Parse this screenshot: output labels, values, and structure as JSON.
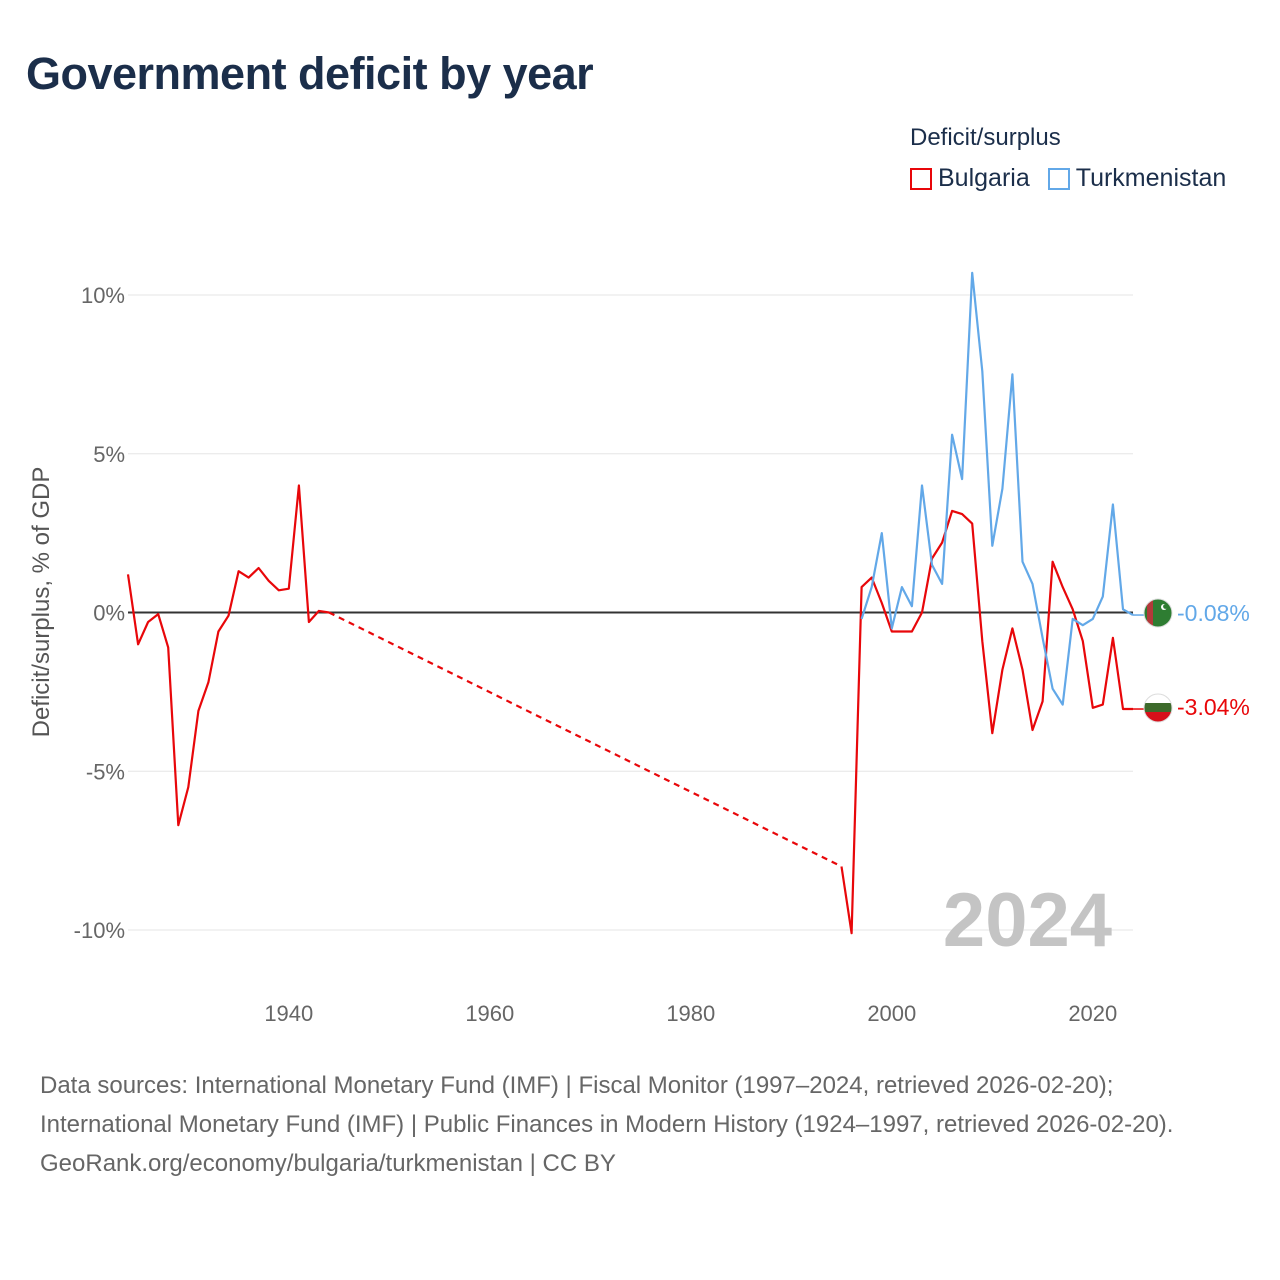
{
  "title": "Government deficit by year",
  "legend_title": "Deficit/surplus",
  "chart_data": {
    "type": "line",
    "title": "Government deficit by year",
    "ylabel": "Deficit/surplus, % of GDP",
    "xlabel": "",
    "xlim": [
      1924,
      2024
    ],
    "ylim": [
      -11,
      11
    ],
    "y_ticks": [
      10,
      5,
      0,
      -5,
      -10
    ],
    "y_tick_labels": [
      "10%",
      "5%",
      "0%",
      "-5%",
      "-10%"
    ],
    "x_ticks": [
      1940,
      1960,
      1980,
      2000,
      2020
    ],
    "x_tick_labels": [
      "1940",
      "1960",
      "1980",
      "2000",
      "2020"
    ],
    "year_label": "2024",
    "series": [
      {
        "name": "Bulgaria",
        "color": "#e8070a",
        "end_label": "-3.04%",
        "gap_dashed": [
          1944,
          1995
        ],
        "points": [
          [
            1924,
            1.2
          ],
          [
            1925,
            -1.0
          ],
          [
            1926,
            -0.3
          ],
          [
            1927,
            -0.05
          ],
          [
            1928,
            -1.1
          ],
          [
            1929,
            -6.7
          ],
          [
            1930,
            -5.5
          ],
          [
            1931,
            -3.1
          ],
          [
            1932,
            -2.2
          ],
          [
            1933,
            -0.6
          ],
          [
            1934,
            -0.1
          ],
          [
            1935,
            1.3
          ],
          [
            1936,
            1.1
          ],
          [
            1937,
            1.4
          ],
          [
            1938,
            1.0
          ],
          [
            1939,
            0.7
          ],
          [
            1940,
            0.75
          ],
          [
            1941,
            4.0
          ],
          [
            1942,
            -0.3
          ],
          [
            1943,
            0.05
          ],
          [
            1944,
            0.0
          ],
          [
            1995,
            -8.0
          ],
          [
            1996,
            -10.1
          ],
          [
            1997,
            0.8
          ],
          [
            1998,
            1.1
          ],
          [
            1999,
            0.3
          ],
          [
            2000,
            -0.6
          ],
          [
            2001,
            -0.6
          ],
          [
            2002,
            -0.6
          ],
          [
            2003,
            0.0
          ],
          [
            2004,
            1.7
          ],
          [
            2005,
            2.2
          ],
          [
            2006,
            3.2
          ],
          [
            2007,
            3.1
          ],
          [
            2008,
            2.8
          ],
          [
            2009,
            -0.9
          ],
          [
            2010,
            -3.8
          ],
          [
            2011,
            -1.8
          ],
          [
            2012,
            -0.5
          ],
          [
            2013,
            -1.8
          ],
          [
            2014,
            -3.7
          ],
          [
            2015,
            -2.8
          ],
          [
            2016,
            1.6
          ],
          [
            2017,
            0.8
          ],
          [
            2018,
            0.1
          ],
          [
            2019,
            -0.9
          ],
          [
            2020,
            -3.0
          ],
          [
            2021,
            -2.9
          ],
          [
            2022,
            -0.8
          ],
          [
            2023,
            -3.04
          ],
          [
            2024,
            -3.04
          ]
        ]
      },
      {
        "name": "Turkmenistan",
        "color": "#62a8e8",
        "end_label": "-0.08%",
        "points": [
          [
            1997,
            -0.2
          ],
          [
            1998,
            0.8
          ],
          [
            1999,
            2.5
          ],
          [
            2000,
            -0.5
          ],
          [
            2001,
            0.8
          ],
          [
            2002,
            0.2
          ],
          [
            2003,
            4.0
          ],
          [
            2004,
            1.5
          ],
          [
            2005,
            0.9
          ],
          [
            2006,
            5.6
          ],
          [
            2007,
            4.2
          ],
          [
            2008,
            10.7
          ],
          [
            2009,
            7.6
          ],
          [
            2010,
            2.1
          ],
          [
            2011,
            3.9
          ],
          [
            2012,
            7.5
          ],
          [
            2013,
            1.6
          ],
          [
            2014,
            0.9
          ],
          [
            2015,
            -0.8
          ],
          [
            2016,
            -2.4
          ],
          [
            2017,
            -2.9
          ],
          [
            2018,
            -0.2
          ],
          [
            2019,
            -0.4
          ],
          [
            2020,
            -0.2
          ],
          [
            2021,
            0.5
          ],
          [
            2022,
            3.4
          ],
          [
            2023,
            0.1
          ],
          [
            2024,
            -0.08
          ]
        ]
      }
    ]
  },
  "sources": {
    "line1": "Data sources: International Monetary Fund (IMF) | Fiscal Monitor (1997–2024, retrieved 2026-02-20); International Monetary Fund (IMF) | Public Finances in Modern History (1924–1997, retrieved 2026-02-20).",
    "line2": "GeoRank.org/economy/bulgaria/turkmenistan | CC BY"
  }
}
